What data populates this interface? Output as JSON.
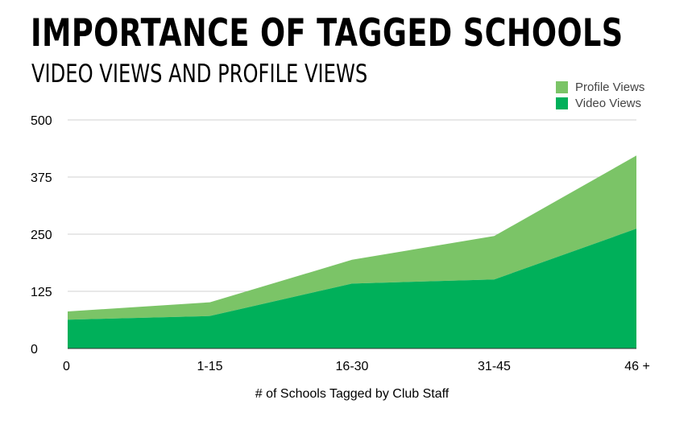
{
  "chart_data": {
    "type": "area",
    "title": "IMPORTANCE OF TAGGED SCHOOLS",
    "subtitle": "VIDEO VIEWS AND PROFILE VIEWS",
    "xlabel": "# of Schools Tagged by Club Staff",
    "ylabel": "",
    "categories": [
      "0",
      "1-15",
      "16-30",
      "31-45",
      "46 +"
    ],
    "ylim": [
      0,
      500
    ],
    "yticks": [
      0,
      125,
      250,
      375,
      500
    ],
    "stacked": true,
    "legend_position": "top-right",
    "grid": true,
    "series": [
      {
        "name": "Profile Views",
        "color": "#7bc467",
        "values": [
          18,
          30,
          52,
          95,
          160
        ]
      },
      {
        "name": "Video Views",
        "color": "#00b05a",
        "values": [
          63,
          71,
          142,
          151,
          262
        ]
      }
    ]
  }
}
